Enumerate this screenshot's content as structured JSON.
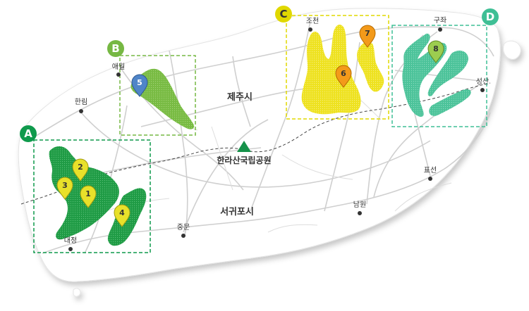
{
  "cities": {
    "jeju": "제주시",
    "seogwipo": "서귀포시",
    "hallasan": "한라산국립공원"
  },
  "towns": {
    "aewol": "애월",
    "hallim": "한림",
    "daejeong": "대정",
    "jungmun": "중문",
    "namwon": "남원",
    "pyoseon": "표선",
    "seongsan": "성산",
    "gujwa": "구좌",
    "jocheon": "조천"
  },
  "zones": {
    "a": {
      "letter": "A",
      "color": "#0f9a4c"
    },
    "b": {
      "letter": "B",
      "color": "#76b843"
    },
    "c": {
      "letter": "C",
      "color": "#e0d800"
    },
    "d": {
      "letter": "D",
      "color": "#3fbf95"
    }
  },
  "pins": {
    "p1": "1",
    "p2": "2",
    "p3": "3",
    "p4": "4",
    "p5": "5",
    "p6": "6",
    "p7": "7",
    "p8": "8"
  },
  "colors": {
    "island": "#ffffff",
    "road": "#cfcfcf",
    "zone_a_fill": "#1f9b45",
    "zone_b_fill": "#78bb43",
    "zone_c_fill": "#eee21f",
    "zone_d_fill": "#4cc39a",
    "pin_yellow": "#e8e12a",
    "pin_orange": "#f39a1a",
    "pin_blue": "#4f85c8",
    "pin_lightgreen": "#9ccd4f",
    "hallasan": "#16924a"
  },
  "icons": {
    "hallasan": "mountain-triangle-icon",
    "pin": "map-pin-icon",
    "town": "town-dot-icon"
  }
}
